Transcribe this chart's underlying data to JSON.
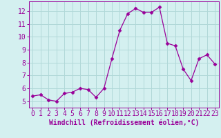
{
  "x": [
    0,
    1,
    2,
    3,
    4,
    5,
    6,
    7,
    8,
    9,
    10,
    11,
    12,
    13,
    14,
    15,
    16,
    17,
    18,
    19,
    20,
    21,
    22,
    23
  ],
  "y": [
    5.4,
    5.5,
    5.1,
    5.0,
    5.6,
    5.7,
    6.0,
    5.9,
    5.3,
    6.0,
    8.3,
    10.5,
    11.8,
    12.2,
    11.9,
    11.9,
    12.3,
    9.5,
    9.3,
    7.5,
    6.6,
    8.3,
    8.6,
    7.9
  ],
  "line_color": "#990099",
  "marker": "D",
  "marker_size": 2.5,
  "bg_color": "#d4f0f0",
  "grid_color": "#b0d8d8",
  "xlabel": "Windchill (Refroidissement éolien,°C)",
  "xlabel_color": "#990099",
  "tick_color": "#990099",
  "xlim": [
    -0.5,
    23.5
  ],
  "ylim": [
    4.5,
    12.75
  ],
  "yticks": [
    5,
    6,
    7,
    8,
    9,
    10,
    11,
    12
  ],
  "xticks": [
    0,
    1,
    2,
    3,
    4,
    5,
    6,
    7,
    8,
    9,
    10,
    11,
    12,
    13,
    14,
    15,
    16,
    17,
    18,
    19,
    20,
    21,
    22,
    23
  ],
  "spine_color": "#990099",
  "font_size": 7.0
}
